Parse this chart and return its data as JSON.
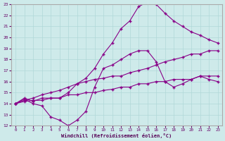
{
  "xlabel": "Windchill (Refroidissement éolien,°C)",
  "background_color": "#ceeaea",
  "line_color": "#880088",
  "xlim": [
    -0.5,
    23.5
  ],
  "ylim": [
    12,
    23
  ],
  "xticks": [
    0,
    1,
    2,
    3,
    4,
    5,
    6,
    7,
    8,
    9,
    10,
    11,
    12,
    13,
    14,
    15,
    16,
    17,
    18,
    19,
    20,
    21,
    22,
    23
  ],
  "yticks": [
    12,
    13,
    14,
    15,
    16,
    17,
    18,
    19,
    20,
    21,
    22,
    23
  ],
  "line1_x": [
    0,
    1,
    2,
    3,
    4,
    5,
    6,
    7,
    8,
    9,
    10,
    11,
    12,
    13,
    14,
    15,
    16,
    17,
    18,
    19,
    20,
    21,
    22,
    23
  ],
  "line1_y": [
    14.0,
    14.4,
    14.0,
    13.8,
    12.8,
    12.5,
    12.0,
    12.5,
    13.3,
    15.5,
    17.2,
    17.5,
    18.0,
    18.5,
    18.8,
    18.8,
    17.8,
    16.0,
    15.5,
    15.8,
    16.2,
    16.5,
    16.2,
    16.0
  ],
  "line2_x": [
    0,
    1,
    2,
    3,
    4,
    5,
    6,
    7,
    8,
    9,
    10,
    11,
    12,
    13,
    14,
    15,
    16,
    17,
    18,
    19,
    20,
    21,
    22,
    23
  ],
  "line2_y": [
    14.0,
    14.5,
    14.2,
    14.5,
    14.5,
    14.5,
    15.0,
    15.8,
    16.3,
    17.2,
    18.5,
    19.5,
    20.8,
    21.5,
    22.8,
    23.2,
    23.0,
    22.2,
    21.5,
    21.0,
    20.5,
    20.2,
    19.8,
    19.5
  ],
  "line3_x": [
    0,
    1,
    2,
    3,
    4,
    5,
    6,
    7,
    8,
    9,
    10,
    11,
    12,
    13,
    14,
    15,
    16,
    17,
    18,
    19,
    20,
    21,
    22,
    23
  ],
  "line3_y": [
    14.0,
    14.3,
    14.5,
    14.8,
    15.0,
    15.2,
    15.5,
    15.8,
    16.0,
    16.2,
    16.3,
    16.5,
    16.5,
    16.8,
    17.0,
    17.2,
    17.5,
    17.8,
    18.0,
    18.2,
    18.5,
    18.5,
    18.8,
    18.8
  ],
  "line4_x": [
    0,
    1,
    2,
    3,
    4,
    5,
    6,
    7,
    8,
    9,
    10,
    11,
    12,
    13,
    14,
    15,
    16,
    17,
    18,
    19,
    20,
    21,
    22,
    23
  ],
  "line4_y": [
    14.0,
    14.2,
    14.3,
    14.3,
    14.5,
    14.5,
    14.8,
    14.8,
    15.0,
    15.0,
    15.2,
    15.3,
    15.5,
    15.5,
    15.8,
    15.8,
    16.0,
    16.0,
    16.2,
    16.2,
    16.2,
    16.5,
    16.5,
    16.5
  ]
}
